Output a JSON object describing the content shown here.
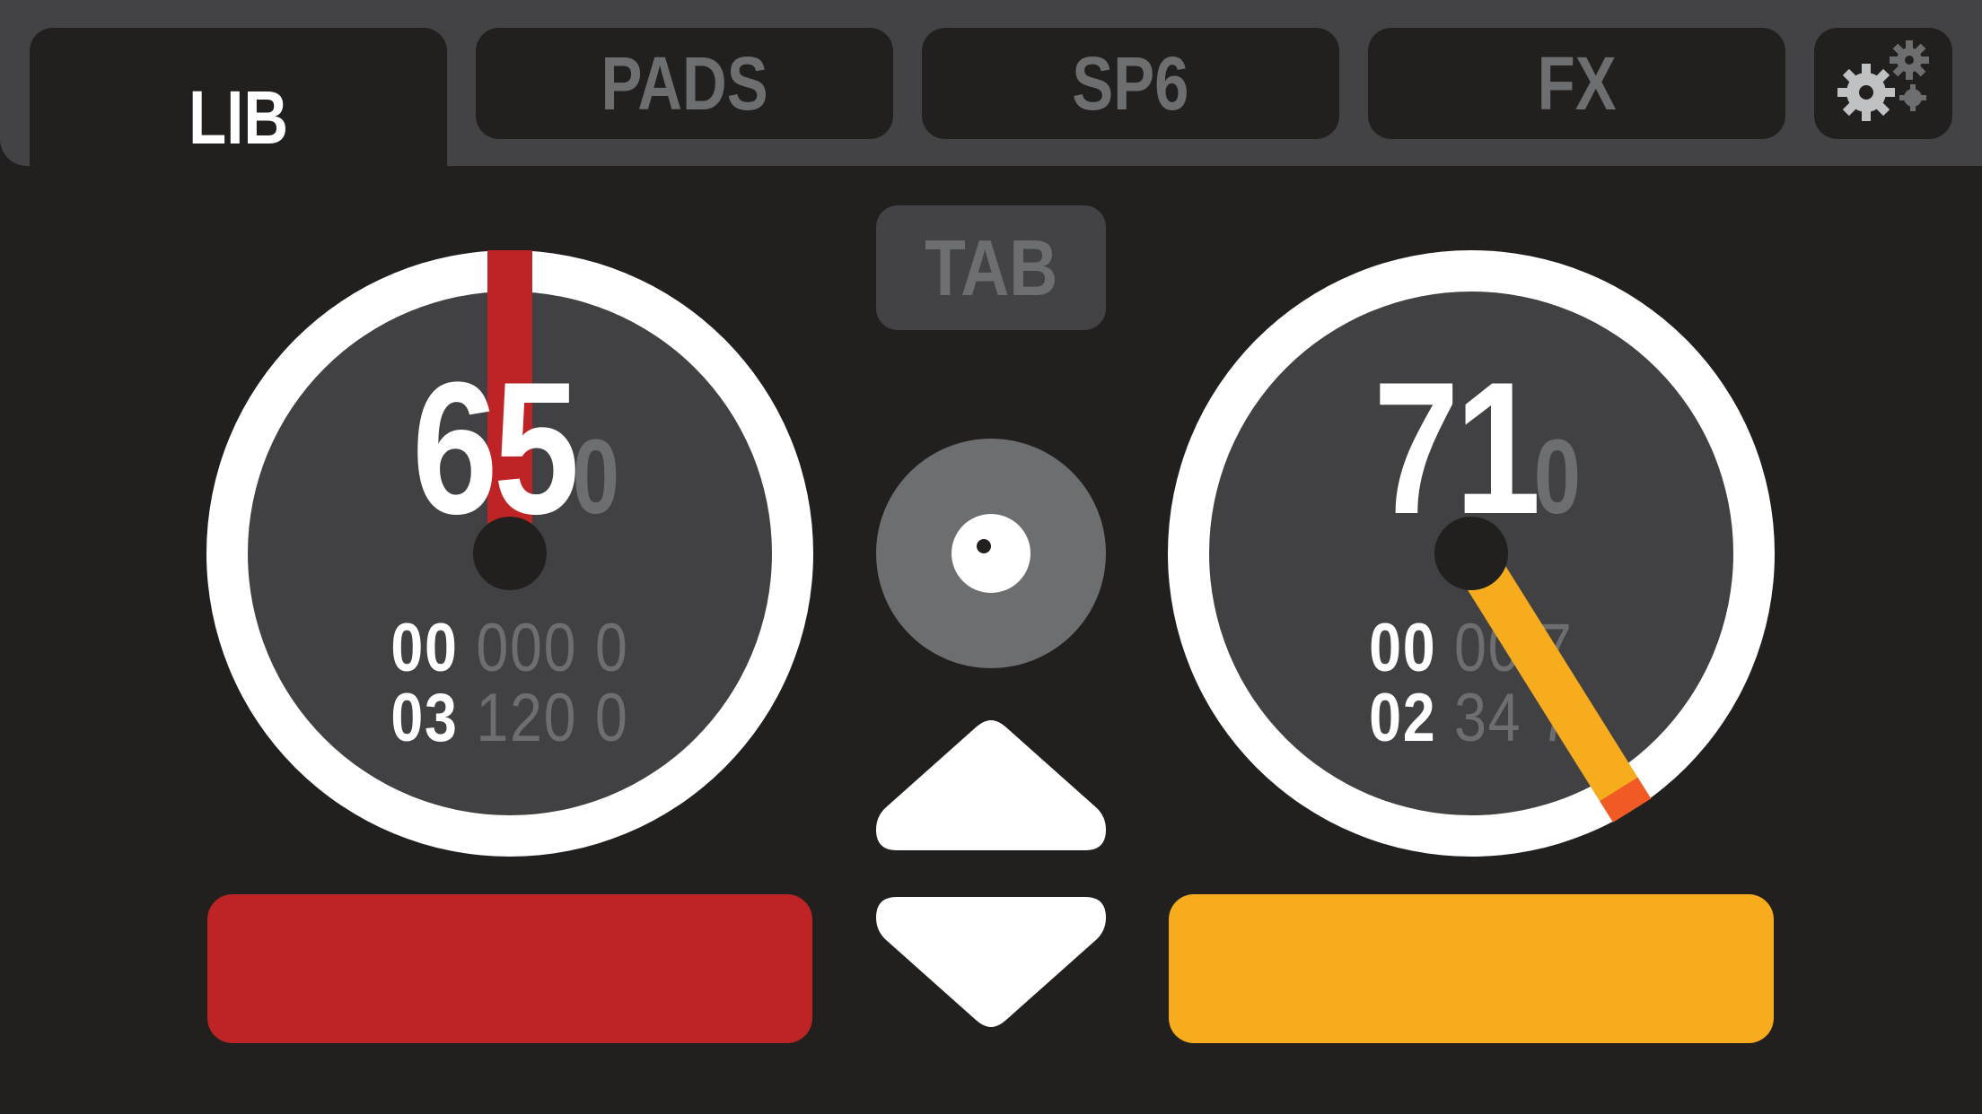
{
  "tabs": [
    {
      "label": "LIB",
      "active": true
    },
    {
      "label": "PADS"
    },
    {
      "label": "SP6"
    },
    {
      "label": "FX"
    }
  ],
  "settings_icon": "gears-icon",
  "tab_button": "TAB",
  "decks": [
    {
      "bpm": "65",
      "bpm_decimal": "0",
      "row1_major": "00",
      "row1_minor": "000",
      "row1_tail": "0",
      "row2_major": "03",
      "row2_minor": "120",
      "row2_tail": "0",
      "needle_angle_deg": 0,
      "color": "#be2426"
    },
    {
      "bpm": "71",
      "bpm_decimal": "0",
      "row1_major": "00",
      "row1_minor": "00",
      "row1_tail": "7",
      "row2_major": "02",
      "row2_minor": "34",
      "row2_tail": "7",
      "needle_angle_deg": 148,
      "color": "#f6ac1d",
      "tip_color": "#f15a24"
    }
  ],
  "center": {
    "browse_icon": "disc-icon",
    "up_icon": "arrow-up-icon",
    "down_icon": "arrow-down-icon"
  },
  "colors": {
    "background": "#221f1f",
    "panel": "#434345",
    "muted_text": "#6d6e70"
  }
}
